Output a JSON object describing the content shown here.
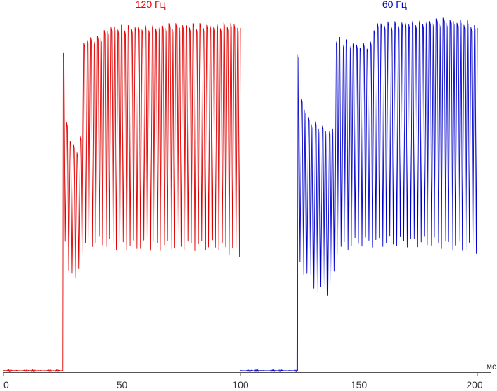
{
  "chart_data": {
    "type": "line",
    "xlim": [
      0,
      200
    ],
    "ylim": [
      0,
      1
    ],
    "x_unit": "мс",
    "x_ticks": [
      0,
      50,
      100,
      150,
      200
    ],
    "grid": false,
    "series": [
      {
        "name": "120 Гц",
        "color": "#e00000",
        "baseline_x": [
          0,
          25
        ],
        "baseline_y": 0.004,
        "rise_x": 25,
        "end_x": 100,
        "pulse_count": 52,
        "points": [
          [
            25.5,
            0.88
          ],
          [
            26.5,
            0.7
          ],
          [
            27.5,
            0.66
          ],
          [
            28.5,
            0.64
          ],
          [
            29.5,
            0.62
          ],
          [
            30.5,
            0.62
          ],
          [
            31.5,
            0.61
          ],
          [
            32.5,
            0.6
          ],
          [
            33.5,
            0.91
          ],
          [
            36.5,
            0.92
          ],
          [
            40,
            0.92
          ],
          [
            45,
            0.95
          ],
          [
            50,
            0.95
          ],
          [
            60,
            0.95
          ],
          [
            70,
            0.955
          ],
          [
            80,
            0.955
          ],
          [
            90,
            0.955
          ],
          [
            97,
            0.96
          ],
          [
            100,
            0.95
          ]
        ],
        "trough_points": [
          [
            25.5,
            0.38
          ],
          [
            27,
            0.28
          ],
          [
            28.5,
            0.3
          ],
          [
            30,
            0.24
          ],
          [
            31.5,
            0.27
          ],
          [
            33,
            0.34
          ],
          [
            36,
            0.36
          ],
          [
            40,
            0.36
          ],
          [
            50,
            0.35
          ],
          [
            60,
            0.35
          ],
          [
            70,
            0.35
          ],
          [
            80,
            0.35
          ],
          [
            90,
            0.35
          ],
          [
            100,
            0.33
          ]
        ]
      },
      {
        "name": "60 Гц",
        "color": "#0000cc",
        "baseline_x": [
          100,
          124
        ],
        "baseline_y": 0.004,
        "rise_x": 124,
        "end_x": 200,
        "pulse_count": 52,
        "points": [
          [
            124.5,
            0.87
          ],
          [
            126,
            0.75
          ],
          [
            128,
            0.71
          ],
          [
            130,
            0.69
          ],
          [
            133,
            0.68
          ],
          [
            136,
            0.67
          ],
          [
            139,
            0.66
          ],
          [
            140.5,
            0.92
          ],
          [
            145,
            0.91
          ],
          [
            150,
            0.9
          ],
          [
            155,
            0.9
          ],
          [
            157,
            0.96
          ],
          [
            165,
            0.96
          ],
          [
            175,
            0.965
          ],
          [
            185,
            0.97
          ],
          [
            195,
            0.965
          ],
          [
            200,
            0.95
          ]
        ],
        "trough_points": [
          [
            124.5,
            0.3
          ],
          [
            127,
            0.28
          ],
          [
            130,
            0.25
          ],
          [
            133,
            0.22
          ],
          [
            136,
            0.22
          ],
          [
            139,
            0.24
          ],
          [
            141,
            0.34
          ],
          [
            150,
            0.36
          ],
          [
            160,
            0.36
          ],
          [
            170,
            0.36
          ],
          [
            180,
            0.36
          ],
          [
            190,
            0.35
          ],
          [
            200,
            0.34
          ]
        ]
      }
    ]
  }
}
